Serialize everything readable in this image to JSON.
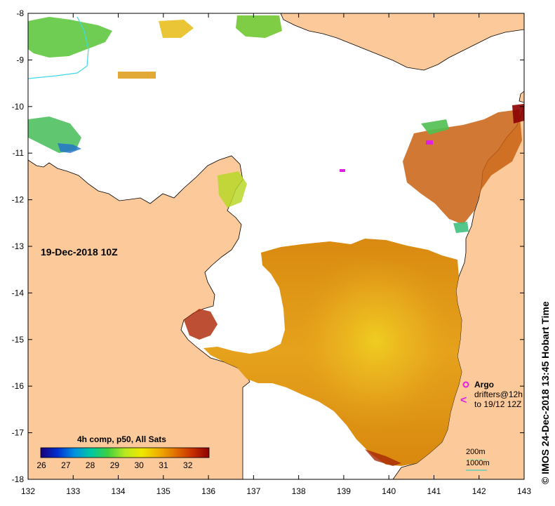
{
  "map": {
    "date_label": "19-Dec-2018 10Z",
    "composite_label": "4h comp, p50, All Sats",
    "credit": "© IMOS 24-Dec-2018 13:45 Hobart Time",
    "lon_ticks": [
      "132",
      "133",
      "134",
      "135",
      "136",
      "137",
      "138",
      "139",
      "140",
      "141",
      "142",
      "143"
    ],
    "lat_ticks": [
      "-8",
      "-9",
      "-10",
      "-11",
      "-12",
      "-13",
      "-14",
      "-15",
      "-16",
      "-17",
      "-18"
    ],
    "colorbar": {
      "ticks": [
        "26",
        "27",
        "28",
        "29",
        "30",
        "31",
        "32"
      ],
      "colors": [
        "#1a007a",
        "#0030d0",
        "#0090e0",
        "#00c8a0",
        "#40d040",
        "#b8e820",
        "#f0e800",
        "#f0b000",
        "#e07000",
        "#c83000",
        "#8a0000"
      ]
    },
    "legend": {
      "argo": "Argo",
      "drifters": "drifters@12h",
      "drifters_range": "to 19/12 12Z",
      "argo_color": "#e020e0",
      "drifter_color": "#e020e0"
    },
    "depth_legend": {
      "contour_200": "200m",
      "contour_1000": "1000m",
      "color_200": "#b0e0a0",
      "color_1000": "#40d0c0"
    },
    "colors": {
      "land": "#fbc99a",
      "no_data": "#ffffff",
      "coast": "#000000"
    }
  }
}
